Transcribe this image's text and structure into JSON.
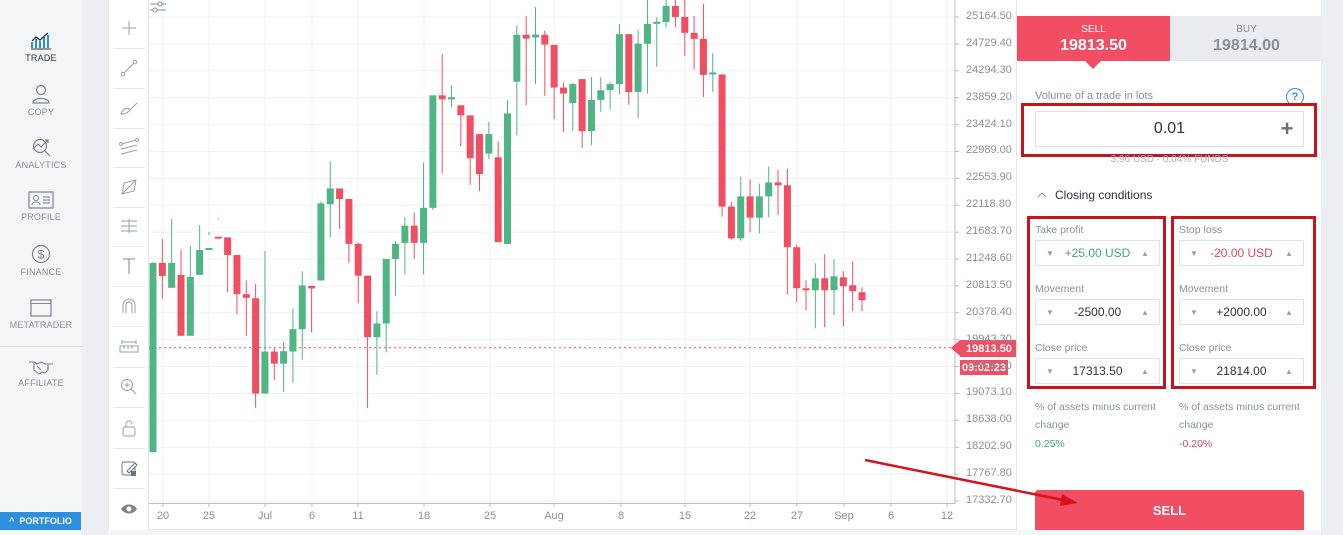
{
  "nav": {
    "items": [
      {
        "label": "TRADE",
        "icon": "trade-chart-icon",
        "active": true
      },
      {
        "label": "COPY",
        "icon": "copy-person-icon",
        "active": false
      },
      {
        "label": "ANALYTICS",
        "icon": "analytics-icon",
        "active": false
      },
      {
        "label": "PROFILE",
        "icon": "profile-card-icon",
        "active": false
      },
      {
        "label": "FINANCE",
        "icon": "dollar-coin-icon",
        "active": false
      },
      {
        "label": "METATRADER",
        "icon": "window-icon",
        "active": false
      },
      {
        "label": "AFFILIATE",
        "icon": "handshake-icon",
        "active": false
      }
    ],
    "portfolio_label": "PORTFOLIO"
  },
  "tools": [
    "crosshair-icon",
    "trend-line-icon",
    "brush-icon",
    "parallel-channel-icon",
    "polygon-icon",
    "fib-levels-icon",
    "text-icon",
    "magnet-icon",
    "ruler-icon",
    "zoom-in-icon",
    "lock-icon",
    "edit-note-icon",
    "eye-icon"
  ],
  "chart": {
    "current_price": "19813.50",
    "timer": "09:02:23",
    "colors": {
      "up": "#4fb585",
      "down": "#f24e63",
      "grid": "#eef0f3"
    }
  },
  "chart_data": {
    "type": "candlestick",
    "title": "",
    "y_ticks": [
      "25164.50",
      "24729.40",
      "24294.30",
      "23859.20",
      "23424.10",
      "22989.00",
      "22553.90",
      "22118.80",
      "21683.70",
      "21248.60",
      "20813.50",
      "20378.40",
      "19943.30",
      "19508.20",
      "19073.10",
      "18638.00",
      "18202.90",
      "17767.80",
      "17332.70"
    ],
    "x_ticks": [
      "20",
      "25",
      "Jul",
      "6",
      "11",
      "18",
      "25",
      "Aug",
      "8",
      "15",
      "22",
      "27",
      "Sep",
      "6",
      "12"
    ],
    "current_price": 19813.5,
    "ylim": [
      17332.7,
      25164.5
    ],
    "candles_ohlc": [
      [
        18123,
        21185,
        18123,
        21201
      ],
      [
        21185,
        20975,
        20604,
        21572
      ],
      [
        20782,
        21185,
        20928,
        21895
      ],
      [
        20991,
        20006,
        20103,
        21395
      ],
      [
        20006,
        20959,
        20103,
        21459
      ],
      [
        20992,
        21394,
        21798,
        21330
      ],
      [
        21394,
        21427,
        21685,
        21637
      ],
      [
        21610,
        21589,
        21901,
        21885
      ],
      [
        21598,
        21313,
        20708,
        21589
      ],
      [
        21313,
        20679,
        20355,
        21248
      ],
      [
        20679,
        20620,
        19999,
        20902
      ],
      [
        20614,
        19072,
        18843,
        20841
      ],
      [
        19072,
        19751,
        19068,
        21379
      ],
      [
        19751,
        19555,
        19293,
        19815
      ],
      [
        19555,
        19757,
        19098,
        19911
      ],
      [
        19751,
        20113,
        19244,
        20448
      ],
      [
        20113,
        20821,
        19617,
        21050
      ],
      [
        20814,
        20772,
        20061,
        20797
      ],
      [
        20901,
        22148,
        20933,
        22180
      ],
      [
        22135,
        22390,
        21603,
        22828
      ],
      [
        22390,
        22220,
        21736,
        22342
      ],
      [
        22220,
        21493,
        21186,
        22051
      ],
      [
        21493,
        20979,
        20531,
        21517
      ],
      [
        20979,
        19983,
        18839,
        20756
      ],
      [
        19983,
        20205,
        19373,
        20405
      ],
      [
        20205,
        21249,
        19740,
        21244
      ],
      [
        21249,
        21494,
        20653,
        21541
      ],
      [
        21510,
        21788,
        20998,
        21927
      ],
      [
        21788,
        21510,
        21250,
        22002
      ],
      [
        21510,
        22076,
        20998,
        22807
      ],
      [
        22076,
        23897,
        22040,
        23702
      ],
      [
        23897,
        23832,
        22634,
        24562
      ],
      [
        23832,
        23866,
        23707,
        24059
      ],
      [
        23736,
        23573,
        23076,
        23671
      ],
      [
        23573,
        22880,
        22447,
        23381
      ],
      [
        23270,
        22622,
        22347,
        23092
      ],
      [
        22954,
        23270,
        22866,
        23468
      ],
      [
        22895,
        21521,
        21520,
        23152
      ],
      [
        21493,
        23605,
        21601,
        23816
      ],
      [
        24116,
        24877,
        23249,
        25033
      ],
      [
        24877,
        24814,
        23736,
        25179
      ],
      [
        24833,
        24880,
        24076,
        25325
      ],
      [
        24877,
        24718,
        23888,
        24944
      ],
      [
        24714,
        24022,
        23510,
        24524
      ],
      [
        24022,
        23926,
        23303,
        24104
      ],
      [
        23773,
        24080,
        23319,
        24103
      ],
      [
        24160,
        23318,
        23043,
        24161
      ],
      [
        23318,
        23824,
        23091,
        24193
      ],
      [
        23824,
        23979,
        23630,
        24192
      ],
      [
        23981,
        24080,
        23668,
        24110
      ],
      [
        24078,
        24887,
        23914,
        25052
      ],
      [
        24887,
        23950,
        23744,
        24889
      ],
      [
        23950,
        24733,
        23527,
        24951
      ],
      [
        24731,
        25054,
        23923,
        25813
      ],
      [
        25054,
        25087,
        24359,
        25161
      ],
      [
        25083,
        25344,
        24995,
        25810
      ],
      [
        25344,
        25166,
        25003,
        25972
      ],
      [
        25166,
        24908,
        24533,
        26146
      ],
      [
        24908,
        24811,
        24314,
        25183
      ],
      [
        24811,
        24228,
        23869,
        25379
      ],
      [
        24245,
        24267,
        23954,
        24578
      ],
      [
        24233,
        22097,
        21933,
        24244
      ],
      [
        22097,
        21582,
        21565,
        22178
      ],
      [
        21582,
        22262,
        21545,
        22583
      ],
      [
        22262,
        21917,
        21680,
        22534
      ],
      [
        21917,
        22262,
        21662,
        22471
      ],
      [
        22262,
        22488,
        21922,
        22747
      ],
      [
        22488,
        22441,
        21957,
        22689
      ],
      [
        22441,
        21439,
        20675,
        22708
      ],
      [
        21439,
        20775,
        20549,
        21476
      ],
      [
        20775,
        20743,
        20415,
        20905
      ],
      [
        20743,
        20937,
        20129,
        21180
      ],
      [
        20937,
        20743,
        20145,
        21326
      ],
      [
        20743,
        20969,
        20339,
        21245
      ],
      [
        20953,
        20808,
        20159,
        21051
      ],
      [
        20824,
        20727,
        20404,
        21212
      ],
      [
        20711,
        20581,
        20404,
        20792
      ]
    ],
    "candle_ohlc_order": [
      "open",
      "close",
      "low",
      "high"
    ]
  },
  "panel": {
    "sell": {
      "label": "SELL",
      "price": "19813.50"
    },
    "buy": {
      "label": "BUY",
      "price": "19814.00"
    },
    "volume_label": "Volume of a trade in lots",
    "volume_value": "0.01",
    "funds_note": "3.96 USD · 0.04% FUNDS",
    "closing_label": "Closing conditions",
    "take_profit": {
      "label": "Take profit",
      "value": "+25.00 USD",
      "movement_label": "Movement",
      "movement": "-2500.00",
      "close_label": "Close price",
      "close": "17313.50",
      "pct_note": "% of assets minus current change",
      "pct": "0.25%"
    },
    "stop_loss": {
      "label": "Stop loss",
      "value": "-20.00 USD",
      "movement_label": "Movement",
      "movement": "+2000.00",
      "close_label": "Close price",
      "close": "21814.00",
      "pct_note": "% of assets minus current change",
      "pct": "-0.20%"
    },
    "submit_label": "SELL",
    "colors": {
      "sell": "#f24e63",
      "positive": "#3fae6a",
      "negative": "#e0485c",
      "highlight": "#c4161c"
    }
  }
}
